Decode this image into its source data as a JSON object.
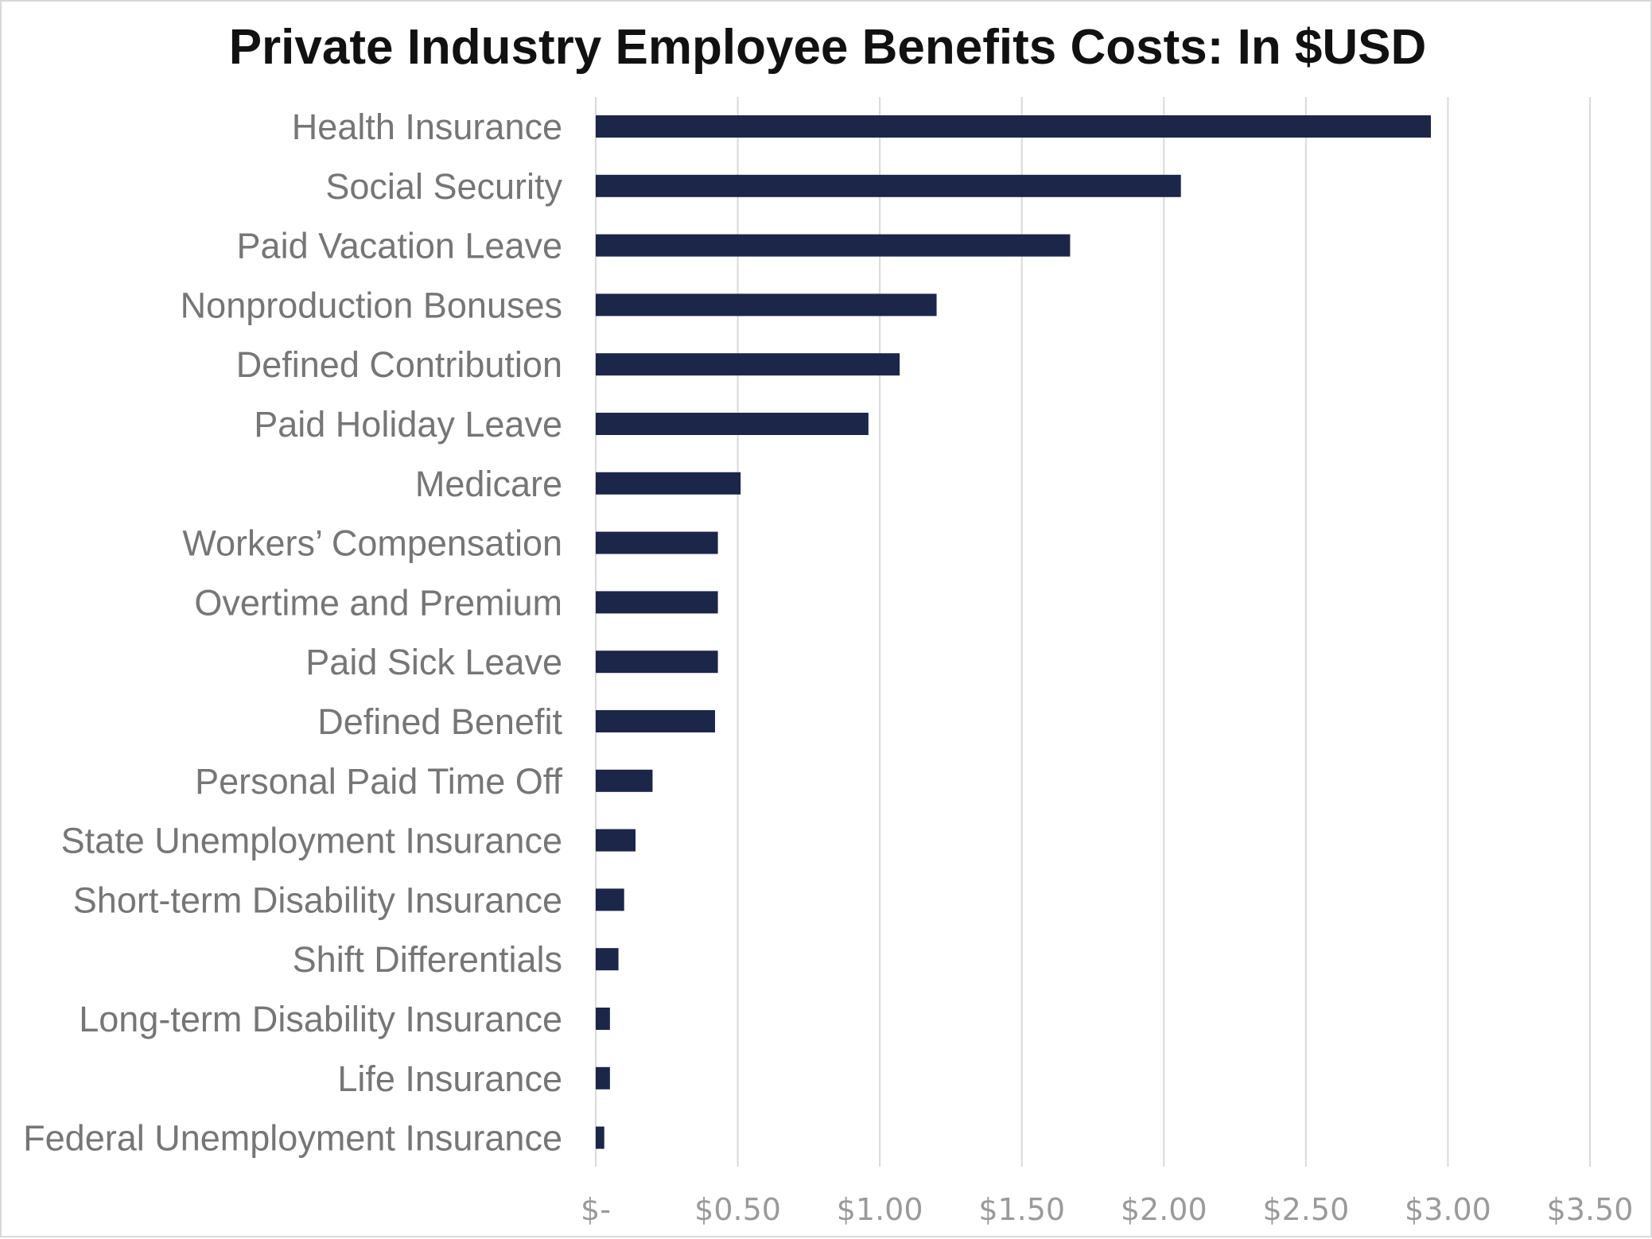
{
  "chart_data": {
    "type": "bar",
    "orientation": "horizontal",
    "title": "Private Industry Employee Benefits Costs: In $USD",
    "xlabel": "",
    "ylabel": "",
    "categories": [
      "Health Insurance",
      "Social Security",
      "Paid Vacation Leave",
      "Nonproduction Bonuses",
      "Defined Contribution",
      "Paid Holiday Leave",
      "Medicare",
      "Workers’ Compensation",
      "Overtime and Premium",
      "Paid Sick Leave",
      "Defined Benefit",
      "Personal Paid Time Off",
      "State Unemployment Insurance",
      "Short-term Disability Insurance",
      "Shift Differentials",
      "Long-term Disability Insurance",
      "Life Insurance",
      "Federal Unemployment Insurance"
    ],
    "values": [
      2.94,
      2.06,
      1.67,
      1.2,
      1.07,
      0.96,
      0.51,
      0.43,
      0.43,
      0.43,
      0.42,
      0.2,
      0.14,
      0.1,
      0.08,
      0.05,
      0.05,
      0.03
    ],
    "xlim": [
      0,
      3.5
    ],
    "ticks": [
      0,
      0.5,
      1.0,
      1.5,
      2.0,
      2.5,
      3.0,
      3.5
    ],
    "tick_labels": [
      "$-",
      "$0.50",
      "$1.00",
      "$1.50",
      "$2.00",
      "$2.50",
      "$3.00",
      "$3.50"
    ],
    "bar_color": "#1c2649",
    "grid": true,
    "legend": "none"
  }
}
